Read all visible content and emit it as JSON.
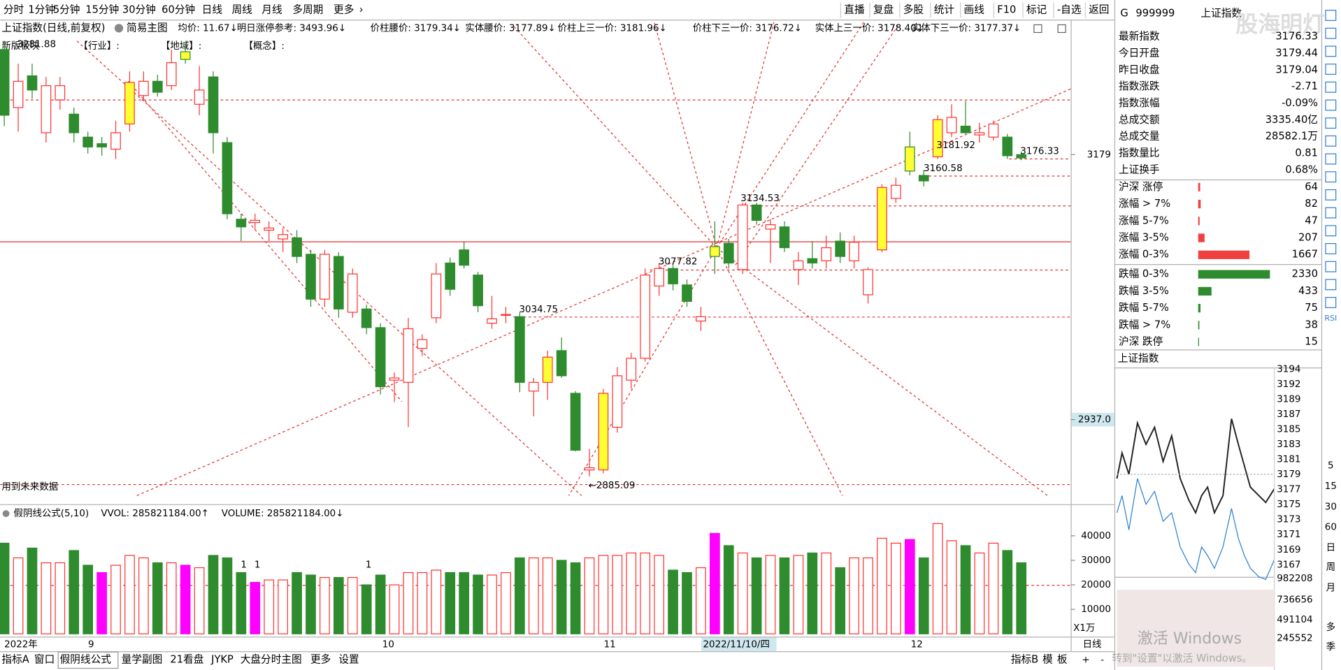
{
  "toolbar": {
    "left": [
      "分时",
      "1分钟",
      "5分钟",
      "15分钟",
      "30分钟",
      "60分钟",
      "日线",
      "周线",
      "月线",
      "多周期",
      "更多",
      "›"
    ],
    "active": 6,
    "right": [
      "直播",
      "复盘",
      "多股",
      "统计",
      "画线",
      "F10",
      "标记",
      "-自选",
      "返回"
    ]
  },
  "info_bar": {
    "instrument": "上证指数(日线,前复权)",
    "mode": "简易主图",
    "items": [
      "均价: 11.67↓",
      "明日涨停参考: 3493.96↓",
      "价柱腰价: 3179.34↓",
      "实体腰价: 3177.89↓",
      "价柱上三一价: 3181.96↓",
      "价柱下三一价: 3176.72↓",
      "实体上三一价: 3178.40↓",
      "实体下三一价: 3177.37↓"
    ]
  },
  "chart_labels": {
    "sector": "新版板块",
    "prior_high": "3281.88",
    "industry": "【行业】:",
    "region": "【地域】:",
    "concept": "【概念】:",
    "future_data": "用到未来数据"
  },
  "price_annotations": [
    "3134.53",
    "3077.82",
    "3034.75",
    "←2885.09",
    "3181.92",
    "3160.58",
    "3176.33"
  ],
  "chart_data": {
    "type": "candlestick",
    "up_color": "#ff3232",
    "down_color": "#2e8b2e",
    "highlight_color": "#ffff33",
    "volume_highlight_color": "#ff00ff",
    "ylim": [
      2867.5,
      3285.9
    ],
    "yticks": [
      3179,
      {
        "value": 2937,
        "label": "2937.0"
      }
    ],
    "candles": [
      [
        3275,
        3282,
        3205,
        3215
      ],
      [
        3222,
        3262,
        3200,
        3246
      ],
      [
        3251,
        3262,
        3230,
        3238
      ],
      [
        3199,
        3250,
        3190,
        3242
      ],
      [
        3229,
        3250,
        3220,
        3242
      ],
      [
        3216,
        3222,
        3190,
        3199
      ],
      [
        3195,
        3200,
        3180,
        3186
      ],
      [
        3189,
        3195,
        3178,
        3186
      ],
      [
        3184,
        3210,
        3175,
        3199
      ],
      [
        3207,
        3255,
        3200,
        3245
      ],
      [
        3233,
        3255,
        3228,
        3246
      ],
      [
        3246,
        3252,
        3232,
        3236
      ],
      [
        3242,
        3275,
        3238,
        3263
      ],
      [
        3273,
        3280,
        3262,
        3266
      ],
      [
        3225,
        3260,
        3215,
        3238
      ],
      [
        3250,
        3255,
        3180,
        3199
      ],
      [
        3190,
        3195,
        3120,
        3125
      ],
      [
        3120,
        3125,
        3100,
        3113
      ],
      [
        3117,
        3125,
        3110,
        3119
      ],
      [
        3110,
        3118,
        3100,
        3112
      ],
      [
        3102,
        3112,
        3090,
        3106
      ],
      [
        3103,
        3110,
        3080,
        3086
      ],
      [
        3088,
        3092,
        3040,
        3047
      ],
      [
        3047,
        3092,
        3040,
        3088
      ],
      [
        3086,
        3090,
        3030,
        3038
      ],
      [
        3035,
        3075,
        3030,
        3070
      ],
      [
        3038,
        3042,
        3015,
        3021
      ],
      [
        3021,
        3025,
        2960,
        2967
      ],
      [
        2973,
        2980,
        2953,
        2975
      ],
      [
        2971,
        3030,
        2930,
        3020
      ],
      [
        3002,
        3015,
        2995,
        3010
      ],
      [
        3030,
        3080,
        3025,
        3070
      ],
      [
        3080,
        3085,
        3050,
        3056
      ],
      [
        3092,
        3100,
        3075,
        3078
      ],
      [
        3069,
        3072,
        3035,
        3041
      ],
      [
        3025,
        3050,
        3020,
        3029
      ],
      [
        3033,
        3040,
        3025,
        3033
      ],
      [
        3031,
        3035,
        2962,
        2971
      ],
      [
        2963,
        2975,
        2940,
        2971
      ],
      [
        2971,
        3000,
        2955,
        2994
      ],
      [
        3000,
        3012,
        2975,
        2977
      ],
      [
        2961,
        2963,
        2908,
        2909
      ],
      [
        2891,
        2910,
        2885,
        2893
      ],
      [
        2891,
        2965,
        2888,
        2961
      ],
      [
        2930,
        2985,
        2925,
        2977
      ],
      [
        2973,
        2998,
        2965,
        2993
      ],
      [
        2993,
        3075,
        2990,
        3069
      ],
      [
        3059,
        3080,
        3050,
        3075
      ],
      [
        3075,
        3080,
        3055,
        3061
      ],
      [
        3060,
        3065,
        3040,
        3045
      ],
      [
        3027,
        3040,
        3018,
        3031
      ],
      [
        3095,
        3118,
        3070,
        3086
      ],
      [
        3098,
        3102,
        3075,
        3080
      ],
      [
        3074,
        3135,
        3070,
        3133
      ],
      [
        3133,
        3135,
        3115,
        3119
      ],
      [
        3111,
        3120,
        3080,
        3115
      ],
      [
        3113,
        3118,
        3090,
        3094
      ],
      [
        3074,
        3090,
        3060,
        3082
      ],
      [
        3084,
        3100,
        3075,
        3080
      ],
      [
        3082,
        3105,
        3075,
        3094
      ],
      [
        3100,
        3108,
        3080,
        3086
      ],
      [
        3082,
        3105,
        3075,
        3099
      ],
      [
        3051,
        3076,
        3043,
        3074
      ],
      [
        3092,
        3152,
        3090,
        3149
      ],
      [
        3139,
        3158,
        3135,
        3151
      ],
      [
        3186,
        3200,
        3160,
        3164
      ],
      [
        3160,
        3165,
        3150,
        3155
      ],
      [
        3177,
        3215,
        3175,
        3211
      ],
      [
        3199,
        3225,
        3195,
        3213
      ],
      [
        3205,
        3228,
        3198,
        3199
      ],
      [
        3197,
        3208,
        3190,
        3199
      ],
      [
        3195,
        3210,
        3192,
        3207
      ],
      [
        3195,
        3198,
        3175,
        3178
      ],
      [
        3179,
        3182,
        3174,
        3176
      ]
    ],
    "highlighted": [
      9,
      13,
      39,
      43,
      51,
      63,
      65,
      67
    ],
    "volume": [
      37000,
      31000,
      35000,
      29000,
      29000,
      34000,
      28000,
      25000,
      28000,
      32000,
      31000,
      29000,
      29000,
      28000,
      27000,
      32000,
      31000,
      25000,
      21000,
      22000,
      22000,
      25000,
      24000,
      23000,
      23000,
      23000,
      20000,
      24000,
      20000,
      25000,
      25000,
      26000,
      25000,
      25000,
      24000,
      24000,
      25000,
      31000,
      31000,
      31000,
      30000,
      29000,
      31000,
      32000,
      32000,
      33000,
      33000,
      32000,
      26000,
      25000,
      27000,
      41000,
      36000,
      33000,
      31000,
      32000,
      31000,
      32000,
      33000,
      33000,
      27000,
      31000,
      31000,
      39000,
      37000,
      38500,
      31000,
      45000,
      38000,
      36000,
      33000,
      37000,
      34000,
      29000
    ],
    "volume_highlighted": [
      7,
      13,
      18,
      51,
      65
    ],
    "vlim": [
      0,
      51500
    ],
    "vticks": [
      10000,
      20000,
      30000,
      40000
    ],
    "volume_unit": "X1万"
  },
  "volume_panel": {
    "formula": "假阴线公式(5,10)",
    "vvol": "VVOL: 285821184.00↑",
    "volume": "VOLUME: 285821184.00↓",
    "signals": [
      "1",
      "1",
      "1"
    ]
  },
  "date_axis": {
    "labels": [
      "2022年",
      "9",
      "10",
      "11",
      "12"
    ],
    "cursor": "2022/11/10/四"
  },
  "quote": {
    "market": "G",
    "code": "999999",
    "name": "上证指数",
    "watermark": "股海明灯",
    "rows": [
      {
        "label": "最新指数",
        "value": "3176.33",
        "color": "#2e8b2e"
      },
      {
        "label": "今日开盘",
        "value": "3179.44",
        "color": "#e02020"
      },
      {
        "label": "昨日收盘",
        "value": "3179.04",
        "color": "#000000"
      },
      {
        "label": "指数涨跌",
        "value": "-2.71",
        "color": "#2e8b2e"
      },
      {
        "label": "指数涨幅",
        "value": "-0.09%",
        "color": "#2e8b2e"
      },
      {
        "label": "总成交额",
        "value": "3335.40亿",
        "color": "#000000"
      },
      {
        "label": "总成交量",
        "value": "28582.1万",
        "color": "#000000"
      },
      {
        "label": "指数量比",
        "value": "0.81",
        "color": "#000000"
      },
      {
        "label": "上证换手",
        "value": "0.68%",
        "color": "#000000"
      }
    ]
  },
  "breadth": {
    "rows": [
      {
        "label": "沪深 涨停",
        "value": 64,
        "color": "#f04040"
      },
      {
        "label": "涨幅 > 7%",
        "value": 82,
        "color": "#f04040"
      },
      {
        "label": "涨幅 5-7%",
        "value": 47,
        "color": "#f04040"
      },
      {
        "label": "涨幅 3-5%",
        "value": 207,
        "color": "#f04040"
      },
      {
        "label": "涨幅 0-3%",
        "value": 1667,
        "color": "#f04040"
      },
      {
        "label": "跌幅 0-3%",
        "value": 2330,
        "color": "#2e8b2e"
      },
      {
        "label": "跌幅 3-5%",
        "value": 433,
        "color": "#2e8b2e"
      },
      {
        "label": "跌幅 5-7%",
        "value": 75,
        "color": "#2e8b2e"
      },
      {
        "label": "跌幅 > 7%",
        "value": 38,
        "color": "#2e8b2e"
      },
      {
        "label": "沪深 跌停",
        "value": 15,
        "color": "#2e8b2e"
      }
    ]
  },
  "mini_chart": {
    "title": "上证指数",
    "price_labels": [
      "3194",
      "3192",
      "3189",
      "3187",
      "3185",
      "3183",
      "3181",
      "3179",
      "3177",
      "3175",
      "3173",
      "3171",
      "3169",
      "3167"
    ],
    "volume_labels": [
      "982208",
      "736656",
      "491104",
      "245552"
    ]
  },
  "side_icons": [
    "RSI",
    "5",
    "15",
    "30",
    "60",
    "日",
    "周",
    "月",
    "多",
    "季"
  ],
  "bottom_tabs": {
    "left": [
      "指标A",
      "窗口",
      "假阴线公式",
      "量学副图",
      "21看盘",
      "JYKP",
      "大盘分时主图",
      "更多",
      "设置"
    ],
    "active": 2,
    "right": [
      "指标B",
      "模",
      "板"
    ],
    "mini": [
      "日线",
      "+",
      "-"
    ]
  },
  "windows_notice": {
    "line1": "激活 Windows",
    "line2": "转到\"设置\"以激活 Windows。"
  }
}
